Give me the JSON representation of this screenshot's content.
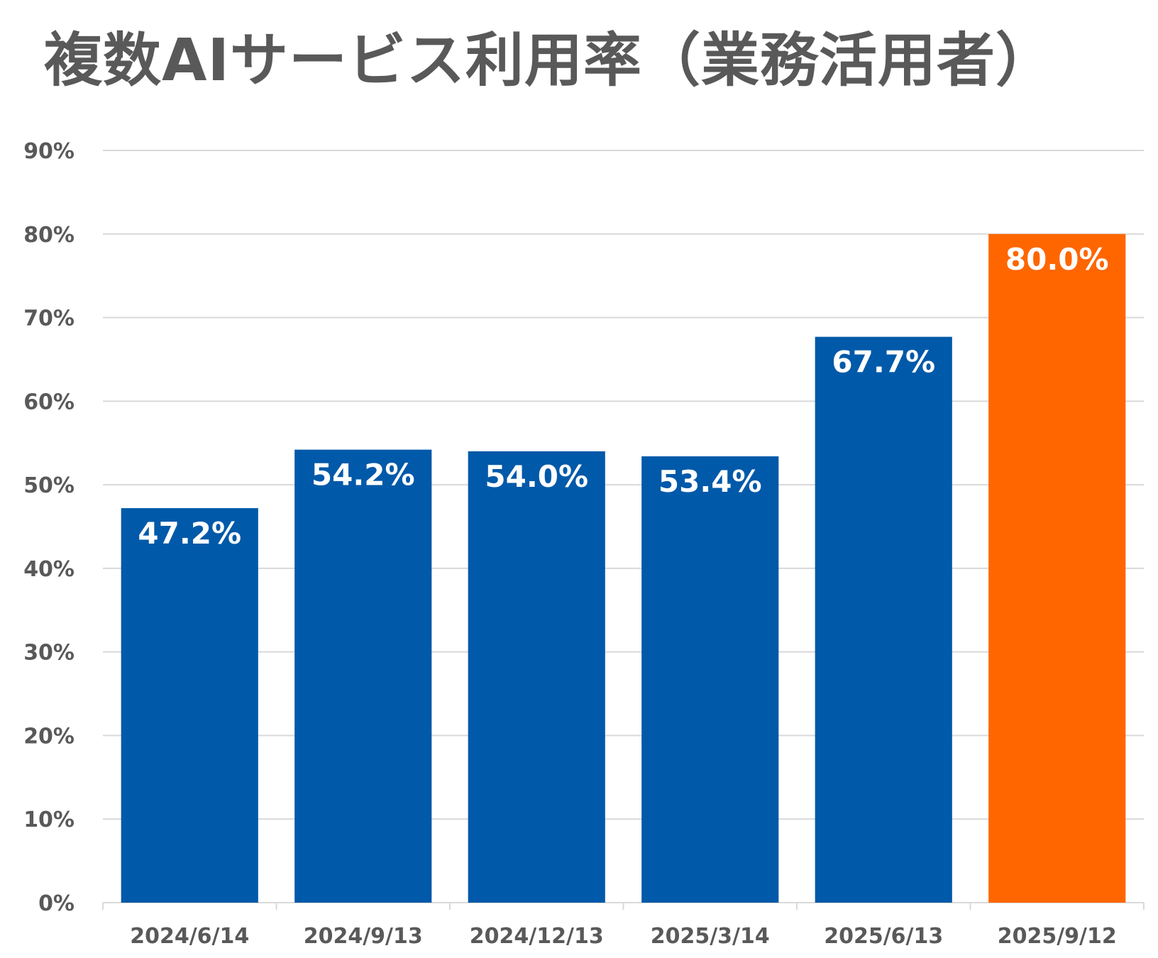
{
  "chart_data": {
    "type": "bar",
    "title": "複数AIサービス利用率（業務活用者）",
    "categories": [
      "2024/6/14",
      "2024/9/13",
      "2024/12/13",
      "2025/3/14",
      "2025/6/13",
      "2025/9/12"
    ],
    "values": [
      47.2,
      54.2,
      54.0,
      53.4,
      67.7,
      80.0
    ],
    "data_labels": [
      "47.2%",
      "54.2%",
      "54.0%",
      "53.4%",
      "67.7%",
      "80.0%"
    ],
    "xlabel": "",
    "ylabel": "",
    "ylim": [
      0,
      90
    ],
    "yticks": [
      0,
      10,
      20,
      30,
      40,
      50,
      60,
      70,
      80,
      90
    ],
    "ytick_labels": [
      "0%",
      "10%",
      "20%",
      "30%",
      "40%",
      "50%",
      "60%",
      "70%",
      "80%",
      "90%"
    ],
    "grid": true,
    "legend": "none",
    "bar_colors": [
      "#0059A9",
      "#0059A9",
      "#0059A9",
      "#0059A9",
      "#0059A9",
      "#FF6600"
    ]
  }
}
